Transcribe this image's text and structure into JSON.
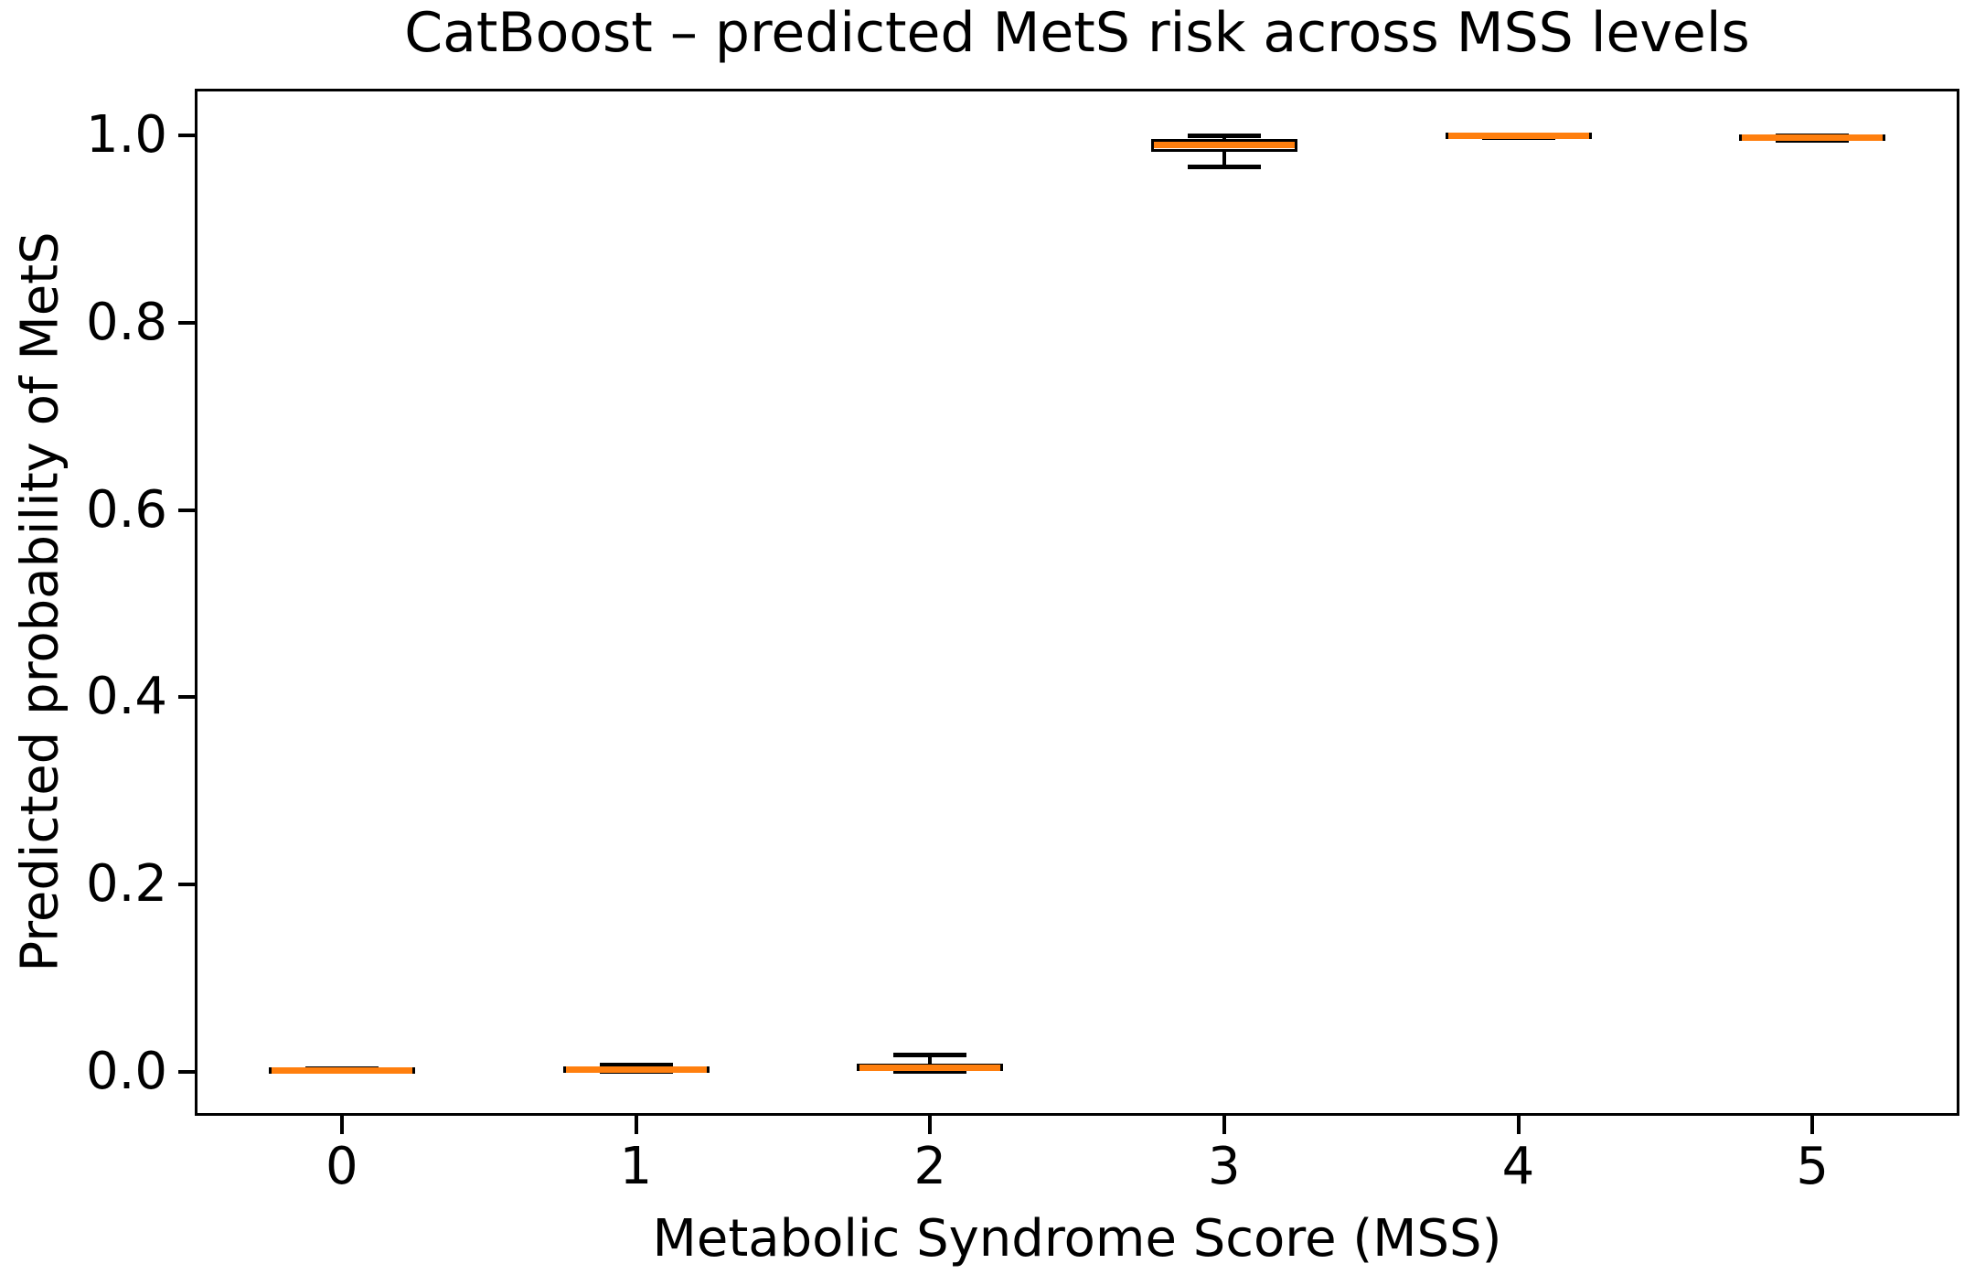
{
  "chart_data": {
    "type": "boxplot",
    "title": "CatBoost – predicted MetS risk across MSS levels",
    "xlabel": "Metabolic Syndrome Score (MSS)",
    "ylabel": "Predicted probability of MetS",
    "categories": [
      "0",
      "1",
      "2",
      "3",
      "4",
      "5"
    ],
    "yticks": [
      "0.0",
      "0.2",
      "0.4",
      "0.6",
      "0.8",
      "1.0"
    ],
    "ylim": [
      -0.047,
      1.05
    ],
    "grid": false,
    "legend": null,
    "colors": {
      "median": "#ff7f0e",
      "box_edge": "#000000",
      "whisker": "#000000",
      "text": "#000000",
      "background": "#ffffff"
    },
    "boxes": [
      {
        "category": "0",
        "whislo": 0.0,
        "q1": 0.0,
        "med": 0.001,
        "q3": 0.002,
        "whishi": 0.003
      },
      {
        "category": "1",
        "whislo": 0.0,
        "q1": 0.0,
        "med": 0.002,
        "q3": 0.004,
        "whishi": 0.007
      },
      {
        "category": "2",
        "whislo": 0.0,
        "q1": 0.001,
        "med": 0.004,
        "q3": 0.009,
        "whishi": 0.018
      },
      {
        "category": "3",
        "whislo": 0.966,
        "q1": 0.983,
        "med": 0.99,
        "q3": 0.996,
        "whishi": 1.0
      },
      {
        "category": "4",
        "whislo": 0.998,
        "q1": 0.999,
        "med": 0.999,
        "q3": 1.0,
        "whishi": 1.0
      },
      {
        "category": "5",
        "whislo": 0.995,
        "q1": 0.997,
        "med": 0.998,
        "q3": 0.999,
        "whishi": 1.0
      }
    ]
  }
}
